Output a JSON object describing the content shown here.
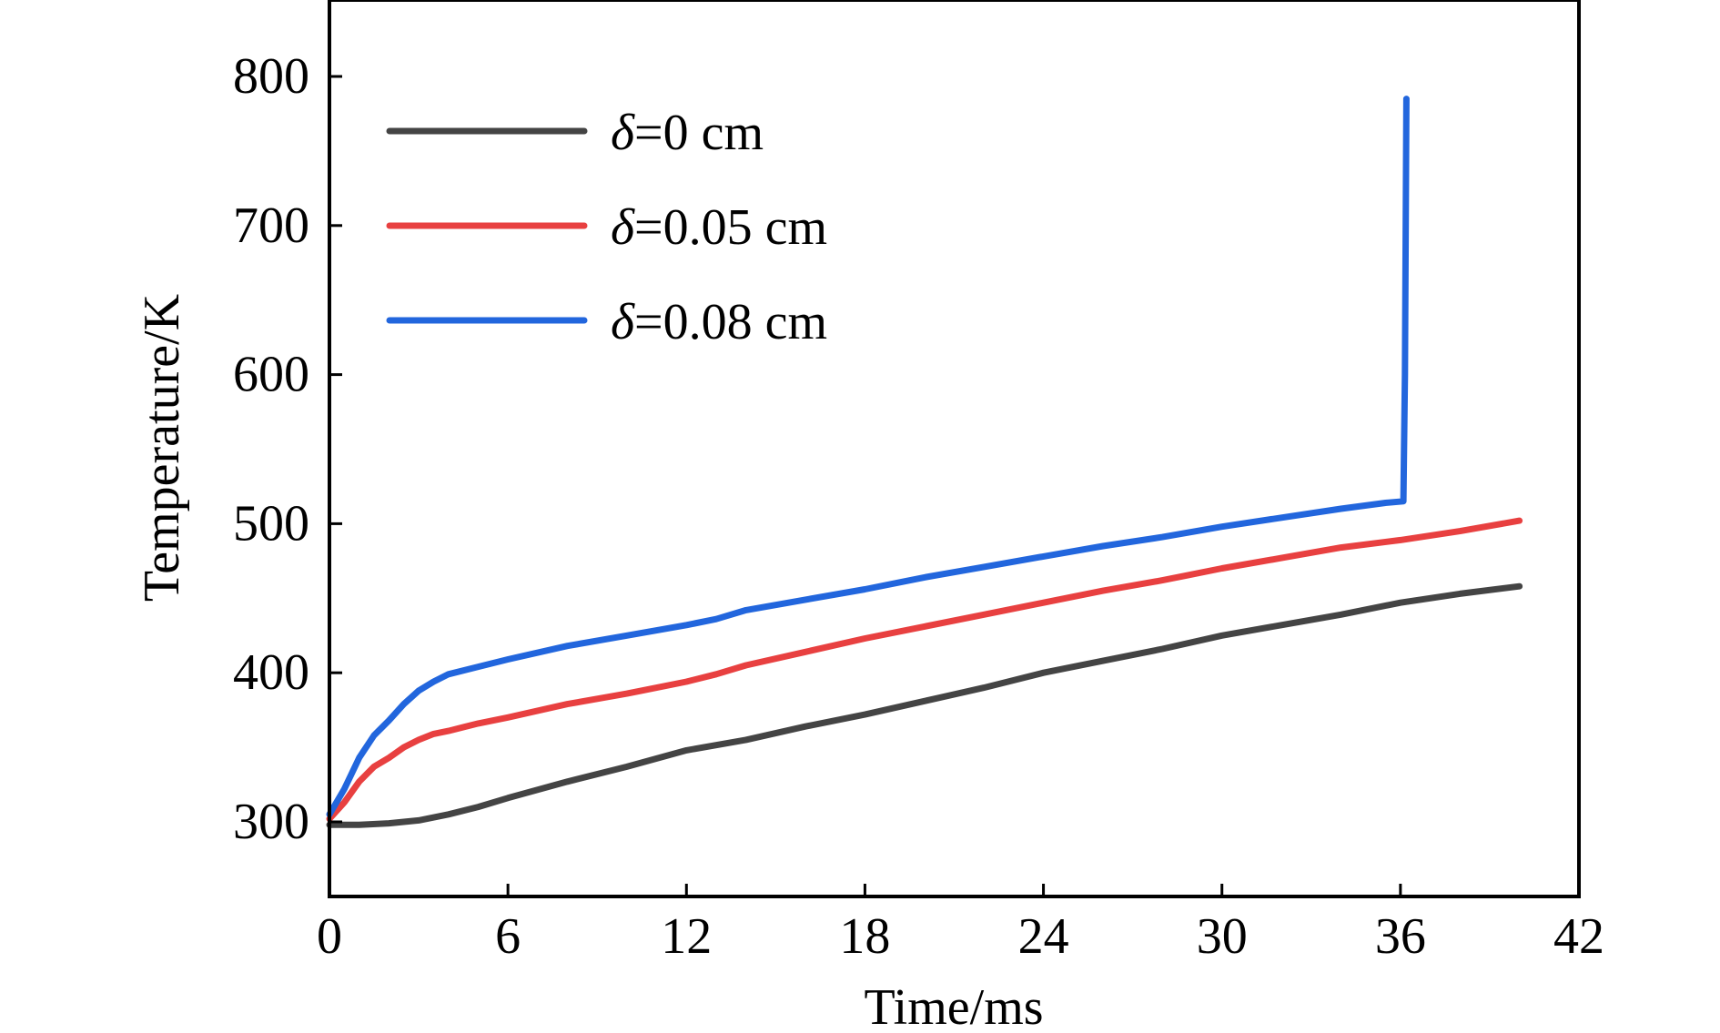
{
  "chart_data": {
    "type": "line",
    "title": "",
    "xlabel": "Time/ms",
    "ylabel": "Temperature/K",
    "xlim": [
      0,
      42
    ],
    "ylim": [
      250,
      850
    ],
    "xticks": [
      0,
      6,
      12,
      18,
      24,
      30,
      36,
      42
    ],
    "yticks": [
      300,
      400,
      500,
      600,
      700,
      800
    ],
    "grid": false,
    "legend_position": "top-left",
    "series": [
      {
        "name_symbol": "δ",
        "name_rest": "=0 cm",
        "color": "#444444",
        "x": [
          0,
          1,
          2,
          3,
          4,
          5,
          6,
          8,
          10,
          12,
          14,
          16,
          18,
          20,
          22,
          24,
          26,
          28,
          30,
          32,
          34,
          36,
          38,
          40
        ],
        "y": [
          298,
          298,
          299,
          301,
          305,
          310,
          316,
          327,
          337,
          348,
          355,
          364,
          372,
          381,
          390,
          400,
          408,
          416,
          425,
          432,
          439,
          447,
          453,
          458
        ]
      },
      {
        "name_symbol": "δ",
        "name_rest": "=0.05 cm",
        "color": "#e84040",
        "x": [
          0,
          0.5,
          1,
          1.5,
          2,
          2.5,
          3,
          3.5,
          4,
          5,
          6,
          8,
          10,
          12,
          13,
          14,
          16,
          18,
          20,
          22,
          24,
          26,
          28,
          29,
          30,
          32,
          34,
          36,
          38,
          40
        ],
        "y": [
          302,
          313,
          327,
          337,
          343,
          350,
          355,
          359,
          361,
          366,
          370,
          379,
          386,
          394,
          399,
          405,
          414,
          423,
          431,
          439,
          447,
          455,
          462,
          466,
          470,
          477,
          484,
          489,
          495,
          502
        ]
      },
      {
        "name_symbol": "δ",
        "name_rest": "=0.08 cm",
        "color": "#2266dd",
        "x": [
          0,
          0.5,
          1,
          1.5,
          2,
          2.5,
          3,
          3.5,
          4,
          5,
          6,
          8,
          10,
          12,
          13,
          14,
          16,
          18,
          20,
          22,
          24,
          26,
          28,
          30,
          32,
          34,
          35.5,
          36.1,
          36.15,
          36.2
        ],
        "y": [
          305,
          322,
          343,
          358,
          368,
          379,
          388,
          394,
          399,
          404,
          409,
          418,
          425,
          432,
          436,
          442,
          449,
          456,
          464,
          471,
          478,
          485,
          491,
          498,
          504,
          510,
          514,
          515,
          600,
          785
        ]
      }
    ]
  }
}
